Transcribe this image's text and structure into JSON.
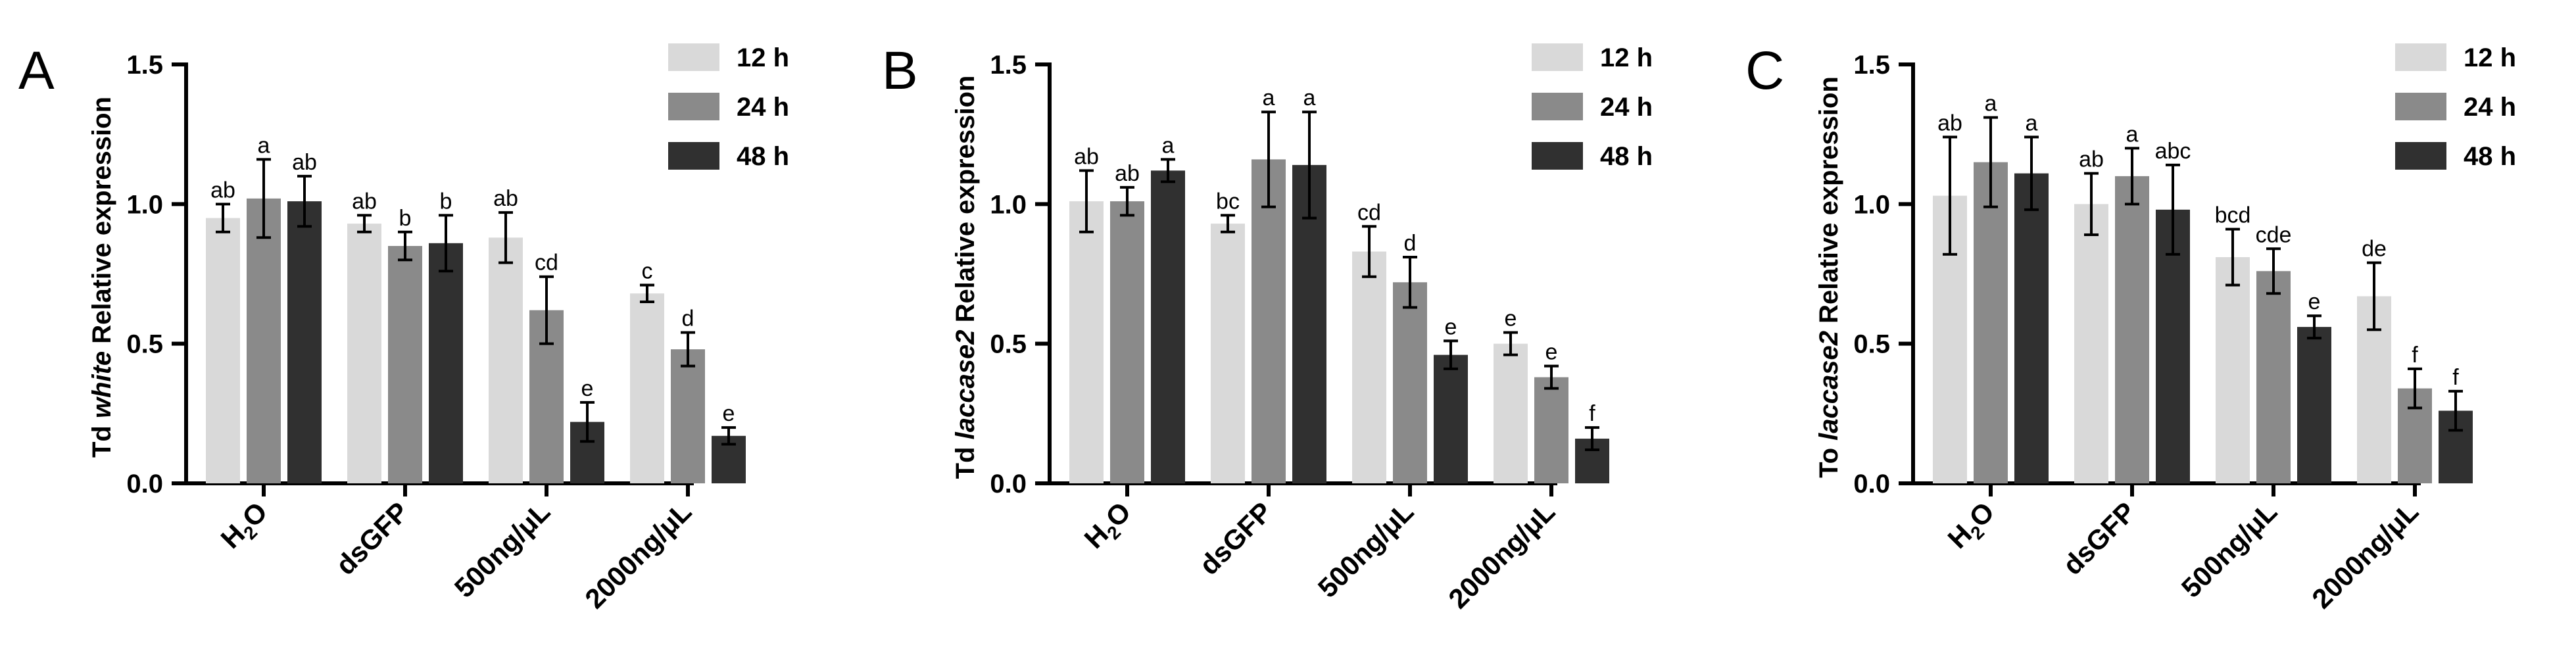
{
  "chart_data": [
    {
      "type": "bar",
      "panel": "A",
      "ylabel_parts": [
        {
          "text": "Td ",
          "italic": false
        },
        {
          "text": "white",
          "italic": true
        },
        {
          "text": " Relative expression",
          "italic": false
        }
      ],
      "xlabel": "",
      "ylim": [
        0,
        1.5
      ],
      "yticks": [
        "0.0",
        "0.5",
        "1.0",
        "1.5"
      ],
      "categories": [
        "H2O",
        "dsGFP",
        "500ng/μL",
        "2000ng/μL"
      ],
      "series": [
        {
          "name": "12 h",
          "color": "#d9d9d9",
          "values": [
            0.95,
            0.93,
            0.88,
            0.68
          ],
          "errors": [
            0.05,
            0.03,
            0.09,
            0.03
          ],
          "labels": [
            "ab",
            "ab",
            "ab",
            "c"
          ]
        },
        {
          "name": "24 h",
          "color": "#8a8a8a",
          "values": [
            1.02,
            0.85,
            0.62,
            0.48
          ],
          "errors": [
            0.14,
            0.05,
            0.12,
            0.06
          ],
          "labels": [
            "a",
            "b",
            "cd",
            "d"
          ]
        },
        {
          "name": "48 h",
          "color": "#303030",
          "values": [
            1.01,
            0.86,
            0.22,
            0.17
          ],
          "errors": [
            0.09,
            0.1,
            0.07,
            0.03
          ],
          "labels": [
            "ab",
            "b",
            "e",
            "e"
          ]
        }
      ],
      "legend_position": "top-right"
    },
    {
      "type": "bar",
      "panel": "B",
      "ylabel_parts": [
        {
          "text": "Td ",
          "italic": false
        },
        {
          "text": "laccase2",
          "italic": true
        },
        {
          "text": " Relative expression",
          "italic": false
        }
      ],
      "xlabel": "",
      "ylim": [
        0,
        1.5
      ],
      "yticks": [
        "0.0",
        "0.5",
        "1.0",
        "1.5"
      ],
      "categories": [
        "H2O",
        "dsGFP",
        "500ng/μL",
        "2000ng/μL"
      ],
      "series": [
        {
          "name": "12 h",
          "color": "#d9d9d9",
          "values": [
            1.01,
            0.93,
            0.83,
            0.5
          ],
          "errors": [
            0.11,
            0.03,
            0.09,
            0.04
          ],
          "labels": [
            "ab",
            "bc",
            "cd",
            "e"
          ]
        },
        {
          "name": "24 h",
          "color": "#8a8a8a",
          "values": [
            1.01,
            1.16,
            0.72,
            0.38
          ],
          "errors": [
            0.05,
            0.17,
            0.09,
            0.04
          ],
          "labels": [
            "ab",
            "a",
            "d",
            "e"
          ]
        },
        {
          "name": "48 h",
          "color": "#303030",
          "values": [
            1.12,
            1.14,
            0.46,
            0.16
          ],
          "errors": [
            0.04,
            0.19,
            0.05,
            0.04
          ],
          "labels": [
            "a",
            "a",
            "e",
            "f"
          ]
        }
      ],
      "legend_position": "top-right"
    },
    {
      "type": "bar",
      "panel": "C",
      "ylabel_parts": [
        {
          "text": "To ",
          "italic": false
        },
        {
          "text": "laccase2",
          "italic": true
        },
        {
          "text": " Relative expression",
          "italic": false
        }
      ],
      "xlabel": "",
      "ylim": [
        0,
        1.5
      ],
      "yticks": [
        "0.0",
        "0.5",
        "1.0",
        "1.5"
      ],
      "categories": [
        "H2O",
        "dsGFP",
        "500ng/μL",
        "2000ng/μL"
      ],
      "series": [
        {
          "name": "12 h",
          "color": "#d9d9d9",
          "values": [
            1.03,
            1.0,
            0.81,
            0.67
          ],
          "errors": [
            0.21,
            0.11,
            0.1,
            0.12
          ],
          "labels": [
            "ab",
            "ab",
            "bcd",
            "de"
          ]
        },
        {
          "name": "24 h",
          "color": "#8a8a8a",
          "values": [
            1.15,
            1.1,
            0.76,
            0.34
          ],
          "errors": [
            0.16,
            0.1,
            0.08,
            0.07
          ],
          "labels": [
            "a",
            "a",
            "cde",
            "f"
          ]
        },
        {
          "name": "48 h",
          "color": "#303030",
          "values": [
            1.11,
            0.98,
            0.56,
            0.26
          ],
          "errors": [
            0.13,
            0.16,
            0.04,
            0.07
          ],
          "labels": [
            "a",
            "abc",
            "e",
            "f"
          ]
        }
      ],
      "legend_position": "top-right"
    }
  ]
}
